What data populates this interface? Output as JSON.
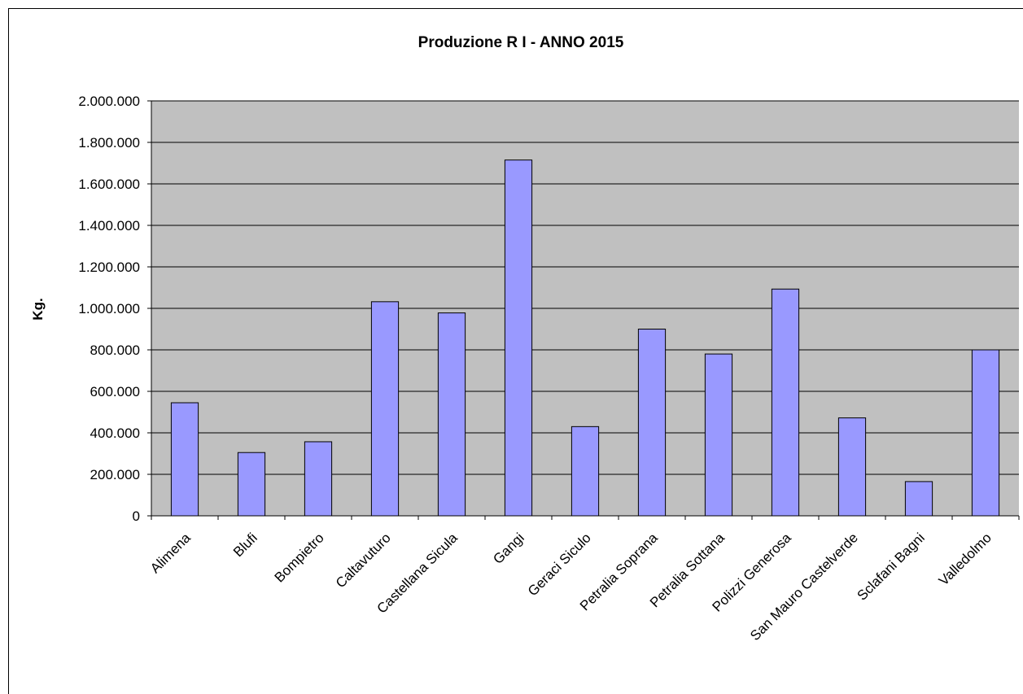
{
  "chart_data": {
    "type": "bar",
    "title": "Produzione R I - ANNO 2015",
    "xlabel": "",
    "ylabel": "Kg.",
    "ylim": [
      0,
      2000000
    ],
    "yticks": [
      "0",
      "200.000",
      "400.000",
      "600.000",
      "800.000",
      "1.000.000",
      "1.200.000",
      "1.400.000",
      "1.600.000",
      "1.800.000",
      "2.000.000"
    ],
    "ytick_values": [
      0,
      200000,
      400000,
      600000,
      800000,
      1000000,
      1200000,
      1400000,
      1600000,
      1800000,
      2000000
    ],
    "grid": true,
    "legend": "none",
    "categories": [
      "Alimena",
      "Blufi",
      "Bompietro",
      "Caltavuturo",
      "Castellana Sicula",
      "Gangi",
      "Geraci Siculo",
      "Petralia Soprana",
      "Petralia Sottana",
      "Polizzi Generosa",
      "San Mauro Castelverde",
      "Sclafani Bagni",
      "Valledolmo"
    ],
    "values": [
      545000,
      305000,
      357000,
      1032000,
      978000,
      1715000,
      430000,
      900000,
      780000,
      1093000,
      472000,
      165000,
      800000
    ],
    "colors": {
      "plot_background": "#c0c0c0",
      "bar_fill": "#9999ff",
      "bar_stroke": "#000000",
      "gridline": "#000000"
    }
  }
}
